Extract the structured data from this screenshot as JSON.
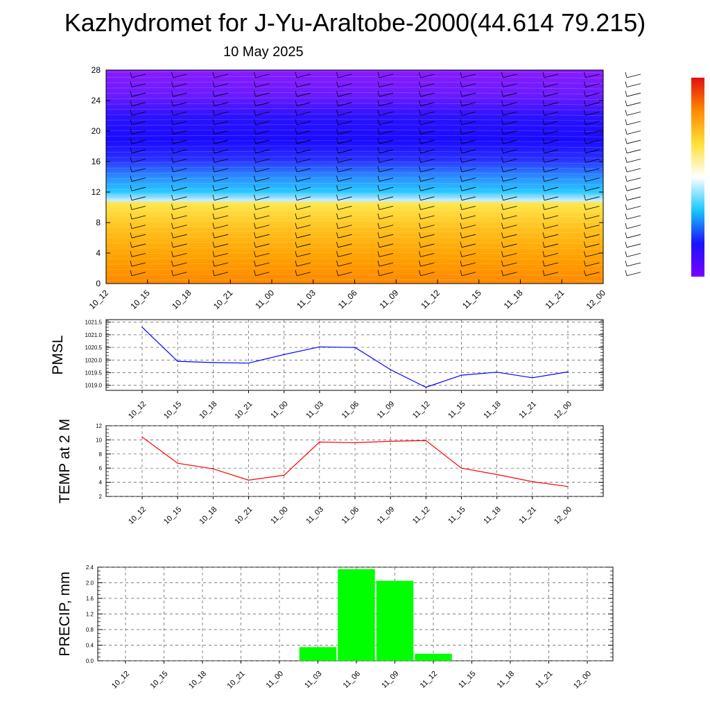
{
  "title": "Kazhydromet for J-Yu-Araltobe-2000(44.614 79.215)",
  "subtitle": "10 May 2025",
  "time_labels": [
    "10_12",
    "10_15",
    "10_18",
    "10_21",
    "11_00",
    "11_03",
    "11_06",
    "11_09",
    "11_12",
    "11_15",
    "11_18",
    "11_21",
    "12_00"
  ],
  "colors": {
    "pmsl_line": "#0000ff",
    "temp_line": "#ff0000",
    "precip_bar": "#00ff00",
    "grid": "#555555",
    "cross_top": "#8a1bff",
    "cross_mid": "#1a12ff",
    "cross_light": "#c9ecff",
    "cross_warm": "#ffb000",
    "cross_bottom": "#ff8a00"
  },
  "chart_data": [
    {
      "id": "cross_section",
      "type": "heatmap",
      "x": [
        "10_12",
        "10_15",
        "10_18",
        "10_21",
        "11_00",
        "11_03",
        "11_06",
        "11_09",
        "11_12",
        "11_15",
        "11_18",
        "11_21",
        "12_00"
      ],
      "yticks": [
        "0",
        "4",
        "8",
        "12",
        "16",
        "20",
        "24",
        "28"
      ],
      "ylim": [
        0,
        28
      ],
      "colorbar": [
        "#7a00ff",
        "#1a12ff",
        "#17c8ff",
        "#ffffff",
        "#ffe03a",
        "#ff8a00",
        "#e21010"
      ]
    },
    {
      "id": "pmsl",
      "type": "line",
      "ylabel": "PMSL",
      "categories": [
        "10_12",
        "10_15",
        "10_18",
        "10_21",
        "11_00",
        "11_03",
        "11_06",
        "11_09",
        "11_12",
        "11_15",
        "11_18",
        "11_21",
        "12_00"
      ],
      "values": [
        1021.3,
        1019.95,
        1019.9,
        1019.88,
        1020.22,
        1020.52,
        1020.5,
        1019.62,
        1018.92,
        1019.4,
        1019.52,
        1019.3,
        1019.53
      ],
      "ylim": [
        1018.8,
        1021.6
      ],
      "yticks": [
        "1019.0",
        "1019.5",
        "1020.0",
        "1020.5",
        "1021.0",
        "1021.5"
      ],
      "grid": true
    },
    {
      "id": "temp",
      "type": "line",
      "ylabel": "TEMP at 2 M",
      "categories": [
        "10_12",
        "10_15",
        "10_18",
        "10_21",
        "11_00",
        "11_03",
        "11_06",
        "11_09",
        "11_12",
        "11_15",
        "11_18",
        "11_21",
        "12_00"
      ],
      "values": [
        10.4,
        6.7,
        5.9,
        4.3,
        5.0,
        9.7,
        9.6,
        9.8,
        9.9,
        6.0,
        5.1,
        4.1,
        3.4
      ],
      "ylim": [
        2,
        12
      ],
      "yticks": [
        "2",
        "4",
        "6",
        "8",
        "10",
        "12"
      ],
      "grid": true
    },
    {
      "id": "precip",
      "type": "bar",
      "ylabel": "PRECIP, mm",
      "categories": [
        "10_12",
        "10_15",
        "10_18",
        "10_21",
        "11_00",
        "11_03",
        "11_06",
        "11_09",
        "11_12",
        "11_15",
        "11_18",
        "11_21",
        "12_00"
      ],
      "values": [
        0,
        0,
        0,
        0,
        0,
        0.35,
        2.35,
        2.05,
        0.18,
        0,
        0,
        0,
        0
      ],
      "ylim": [
        0,
        2.4
      ],
      "yticks": [
        "0.0",
        "0.4",
        "0.8",
        "1.2",
        "1.6",
        "2.0",
        "2.4"
      ],
      "grid": true
    }
  ]
}
